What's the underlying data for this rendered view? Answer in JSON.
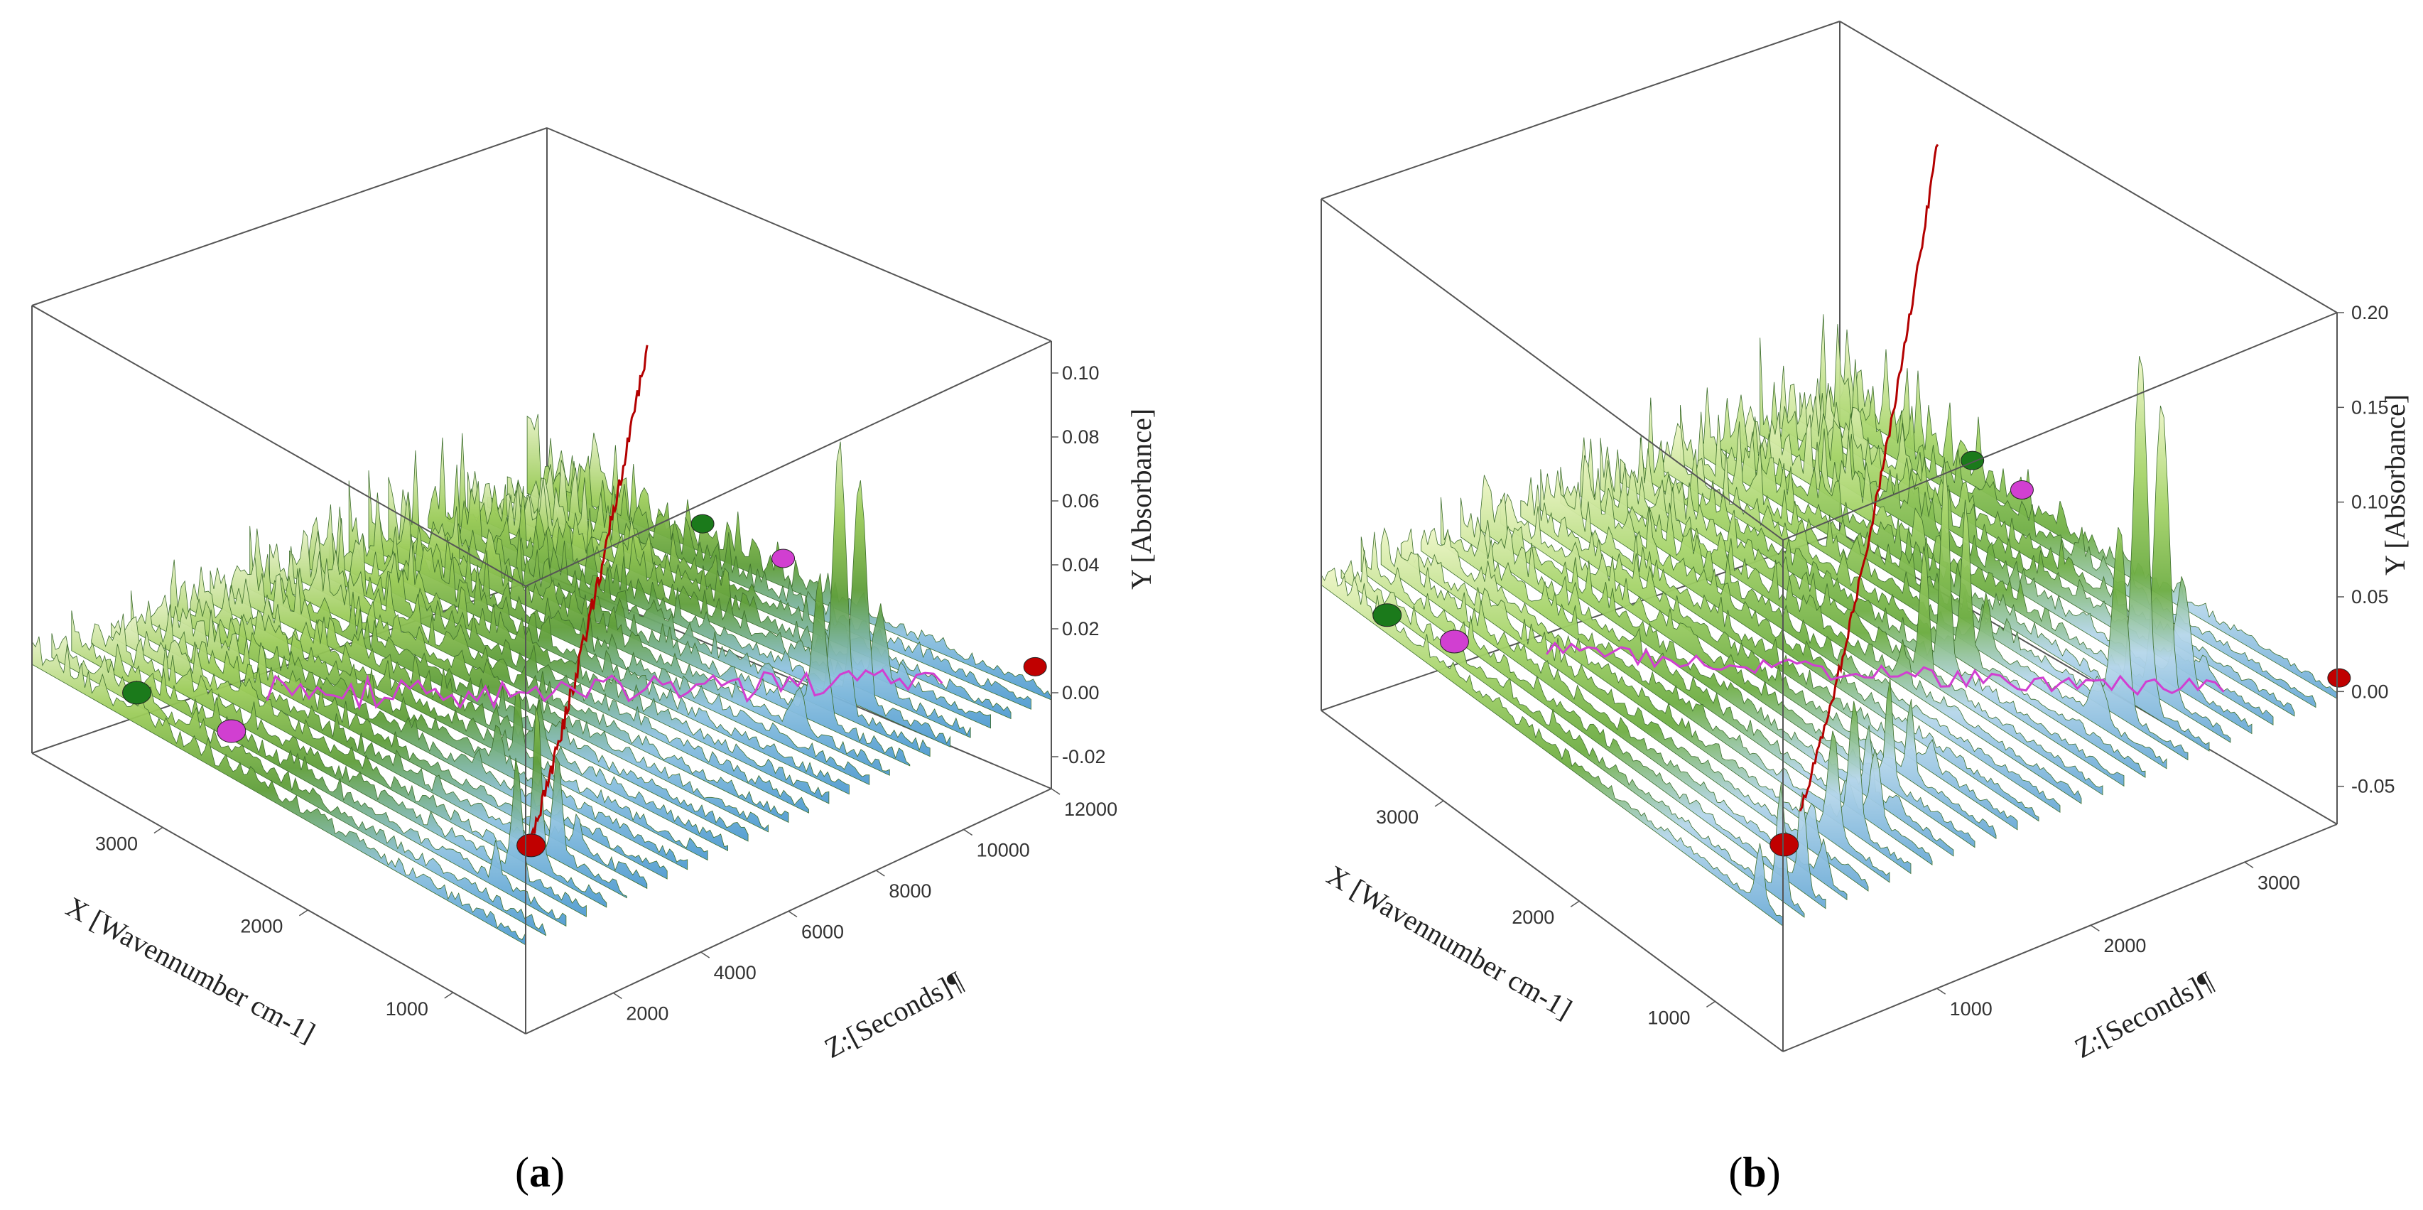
{
  "chart_data": [
    {
      "type": "surface3d",
      "panel_label": "a",
      "xlabel": "X [Wavennumber cm-1]",
      "ylabel": "Y [Absorbance]",
      "zlabel": "Z:[Seconds]¶",
      "x_ticks": [
        "1000",
        "2000",
        "3000"
      ],
      "y_ticks": [
        "-0.02",
        "0.00",
        "0.02",
        "0.04",
        "0.06",
        "0.08",
        "0.10"
      ],
      "z_ticks": [
        "2000",
        "4000",
        "6000",
        "8000",
        "10000",
        "12000"
      ],
      "xlim": [
        500,
        3900
      ],
      "ylim": [
        -0.03,
        0.11
      ],
      "zlim": [
        0,
        12000
      ],
      "markers": [
        {
          "color": "#1b7a1b",
          "name": "green-marker"
        },
        {
          "color": "#d13fd1",
          "name": "magenta-marker"
        },
        {
          "color": "#c00000",
          "name": "red-marker"
        }
      ]
    },
    {
      "type": "surface3d",
      "panel_label": "b",
      "xlabel": "X [Wavennumber cm-1]",
      "ylabel": "Y [Absorbance]",
      "zlabel": "Z:[Seconds]¶",
      "x_ticks": [
        "1000",
        "2000",
        "3000"
      ],
      "y_ticks": [
        "-0.05",
        "0.00",
        "0.05",
        "0.10",
        "0.15",
        "0.20"
      ],
      "z_ticks": [
        "1000",
        "2000",
        "3000"
      ],
      "xlim": [
        500,
        3900
      ],
      "ylim": [
        -0.07,
        0.2
      ],
      "zlim": [
        0,
        3600
      ],
      "markers": [
        {
          "color": "#1b7a1b",
          "name": "green-marker"
        },
        {
          "color": "#d13fd1",
          "name": "magenta-marker"
        },
        {
          "color": "#c00000",
          "name": "red-marker"
        }
      ]
    }
  ],
  "captions": {
    "a_open": "(",
    "a_letter": "a",
    "a_close": ")",
    "b_open": "(",
    "b_letter": "b",
    "b_close": ")"
  }
}
